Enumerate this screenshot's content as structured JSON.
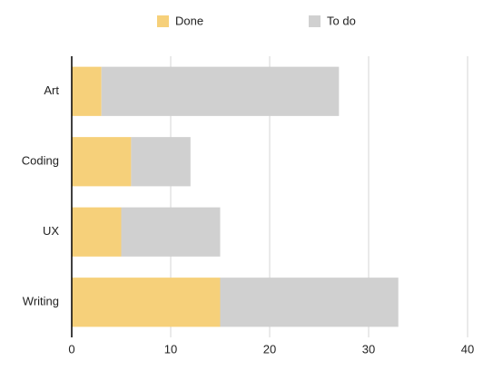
{
  "chart_data": {
    "type": "stacked-bar-horizontal",
    "categories": [
      "Art",
      "Coding",
      "UX",
      "Writing"
    ],
    "series": [
      {
        "name": "Done",
        "color": "#f6d07a",
        "values": [
          3,
          6,
          5,
          15
        ]
      },
      {
        "name": "To do",
        "color": "#d0d0d0",
        "values": [
          24,
          6,
          10,
          18
        ]
      }
    ],
    "xlim": [
      0,
      40
    ],
    "xticks": [
      0,
      10,
      20,
      30,
      40
    ],
    "grid": true,
    "legend": "top"
  }
}
